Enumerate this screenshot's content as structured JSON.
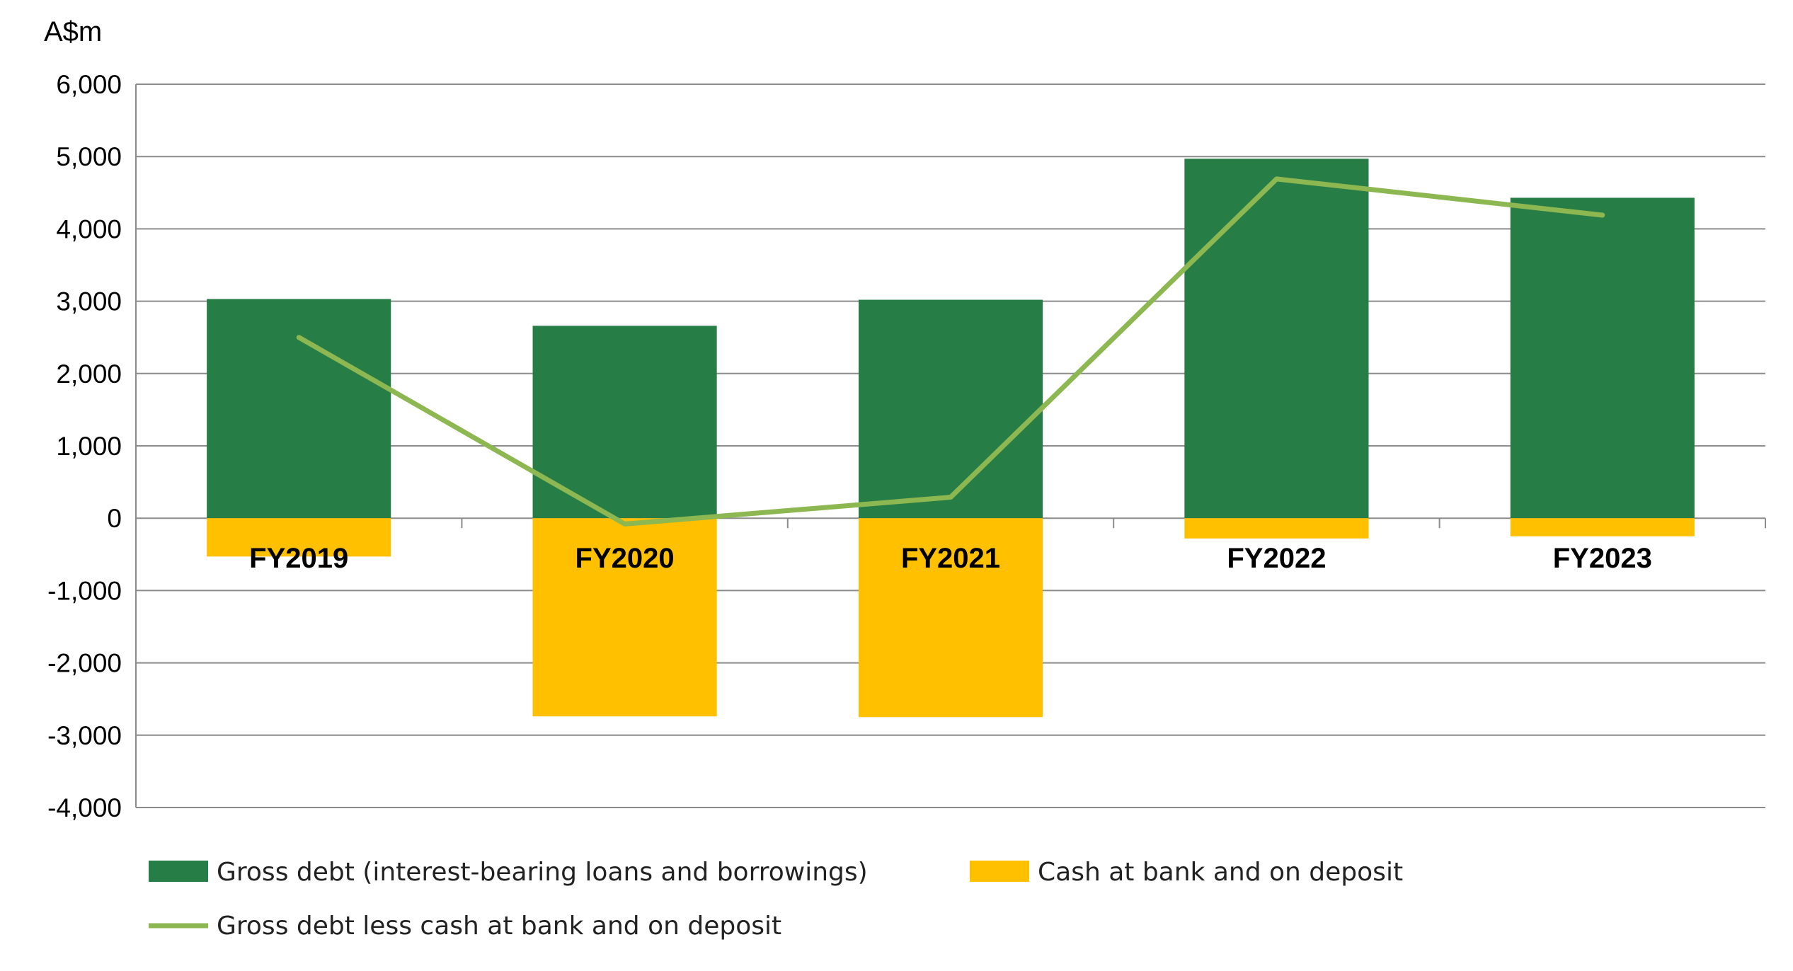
{
  "chart_data": {
    "type": "bar",
    "unit_label": "A$m",
    "categories": [
      "FY2019",
      "FY2020",
      "FY2021",
      "FY2022",
      "FY2023"
    ],
    "y_ticks": [
      "6,000",
      "5,000",
      "4,000",
      "3,000",
      "2,000",
      "1,000",
      "0",
      "-1,000",
      "-2,000",
      "-3,000",
      "-4,000"
    ],
    "ylim": [
      -4000,
      6000
    ],
    "grid": true,
    "legend_position": "bottom",
    "series": [
      {
        "name": "Gross debt (interest-bearing loans and borrowings)",
        "type": "bar",
        "color": "#267E46",
        "values": [
          3030,
          2660,
          3020,
          4970,
          4430
        ]
      },
      {
        "name": "Cash at bank and on deposit",
        "type": "bar",
        "color": "#FFC000",
        "values": [
          -530,
          -2740,
          -2750,
          -280,
          -250
        ]
      },
      {
        "name": "Gross debt less cash at bank and on deposit",
        "type": "line",
        "color": "#8DB750",
        "values": [
          2500,
          -80,
          290,
          4690,
          4190
        ]
      }
    ]
  }
}
